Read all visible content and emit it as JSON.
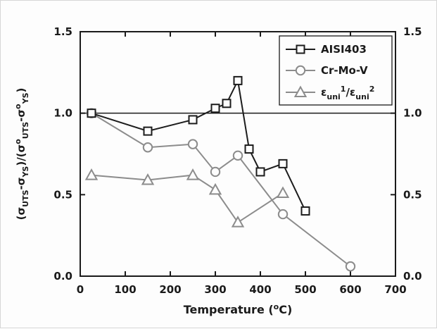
{
  "figure": {
    "background": "#fdfdfd",
    "axis_color": "#1a1a1a",
    "gray_series_color": "#8c8c8c"
  },
  "chart_data": {
    "type": "line",
    "title": "",
    "xlabel": "Temperature (°C)",
    "xlabel_segments": [
      {
        "t": "Temperature ("
      },
      {
        "t": "o",
        "pos": "sup"
      },
      {
        "t": "C)"
      }
    ],
    "ylabel": "(σUTS-σYS)/(σ°UTS-σ°YS)",
    "ylabel_segments": [
      {
        "t": "(σ"
      },
      {
        "t": "UTS",
        "pos": "sub"
      },
      {
        "t": "-σ"
      },
      {
        "t": "YS",
        "pos": "sub"
      },
      {
        "t": ")/(σ"
      },
      {
        "t": "o",
        "pos": "sup"
      },
      {
        "t": "UTS",
        "pos": "sub"
      },
      {
        "t": "-σ"
      },
      {
        "t": "o",
        "pos": "sup"
      },
      {
        "t": "YS",
        "pos": "sub"
      },
      {
        "t": ")"
      }
    ],
    "xlim": [
      0,
      700
    ],
    "ylim": [
      0.0,
      1.5
    ],
    "xticks": [
      0,
      100,
      200,
      300,
      400,
      500,
      600,
      700
    ],
    "xtick_labels": [
      "0",
      "100",
      "200",
      "300",
      "400",
      "500",
      "600",
      "700"
    ],
    "ytick_values": [
      0.0,
      0.5,
      1.0,
      1.5
    ],
    "ytick_labels": [
      "0.0",
      "0.5",
      "1.0",
      "1.5"
    ],
    "y_axis_mirrored_right": true,
    "grid": false,
    "reference_line_y": 1.0,
    "legend_position": "top-right",
    "series": [
      {
        "name": "AISI403",
        "label_segments": [
          {
            "t": "AISI403"
          }
        ],
        "marker": "square",
        "color": "#1c1c1c",
        "x": [
          25,
          150,
          250,
          300,
          325,
          350,
          375,
          400,
          450,
          500
        ],
        "y": [
          1.0,
          0.89,
          0.96,
          1.03,
          1.06,
          1.2,
          0.78,
          0.64,
          0.69,
          0.4
        ]
      },
      {
        "name": "Cr-Mo-V",
        "label_segments": [
          {
            "t": "Cr-Mo-V"
          }
        ],
        "marker": "circle",
        "color": "#8c8c8c",
        "x": [
          25,
          150,
          250,
          300,
          350,
          450,
          600
        ],
        "y": [
          1.0,
          0.79,
          0.81,
          0.64,
          0.74,
          0.38,
          0.06
        ]
      },
      {
        "name": "eps_uni1/eps_uni2",
        "label_segments": [
          {
            "t": "ε"
          },
          {
            "t": "uni",
            "pos": "sub"
          },
          {
            "t": "1",
            "pos": "sup"
          },
          {
            "t": "/ε"
          },
          {
            "t": "uni",
            "pos": "sub"
          },
          {
            "t": "2",
            "pos": "sup"
          }
        ],
        "marker": "triangle",
        "color": "#8c8c8c",
        "x": [
          25,
          150,
          250,
          300,
          350,
          450
        ],
        "y": [
          0.62,
          0.59,
          0.62,
          0.53,
          0.33,
          0.51
        ]
      }
    ]
  }
}
